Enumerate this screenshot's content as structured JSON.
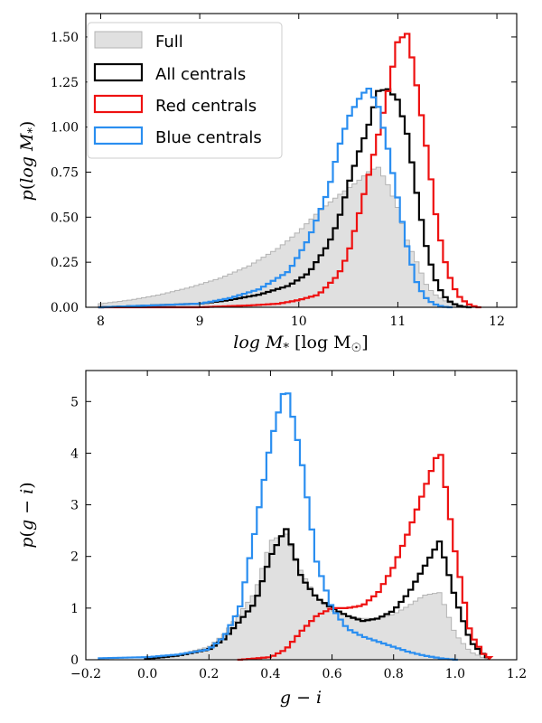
{
  "chart_data": [
    {
      "type": "histogram",
      "panel": "top",
      "xlabel": "log M* [log M☉]",
      "ylabel": "p(log M*)",
      "xlim": [
        7.85,
        12.2
      ],
      "ylim": [
        0,
        1.63
      ],
      "xticks": [
        8,
        9,
        10,
        11,
        12
      ],
      "xtick_labels": [
        "8",
        "9",
        "10",
        "11",
        "12"
      ],
      "yticks": [
        0,
        0.25,
        0.5,
        0.75,
        1.0,
        1.25,
        1.5
      ],
      "ytick_labels": [
        "0.00",
        "0.25",
        "0.50",
        "0.75",
        "1.00",
        "1.25",
        "1.50"
      ],
      "legend_position": "top-left",
      "series": [
        {
          "name": "Full",
          "style": "filled",
          "color": "#e0e0e0",
          "edge": "#b3b3b3",
          "x": [
            8.0,
            8.3,
            8.6,
            8.9,
            9.2,
            9.5,
            9.8,
            10.0,
            10.2,
            10.4,
            10.5,
            10.6,
            10.7,
            10.8,
            10.9,
            11.0,
            11.1,
            11.2,
            11.3,
            11.4,
            11.5,
            11.6,
            11.7,
            11.8
          ],
          "y": [
            0.02,
            0.04,
            0.07,
            0.11,
            0.16,
            0.23,
            0.33,
            0.42,
            0.53,
            0.62,
            0.66,
            0.7,
            0.75,
            0.78,
            0.68,
            0.55,
            0.36,
            0.24,
            0.11,
            0.06,
            0.03,
            0.01,
            0.0,
            0.0
          ]
        },
        {
          "name": "All centrals",
          "style": "step",
          "color": "#000000",
          "x": [
            8.0,
            8.5,
            9.0,
            9.3,
            9.6,
            9.9,
            10.1,
            10.3,
            10.4,
            10.5,
            10.6,
            10.7,
            10.8,
            10.9,
            11.0,
            11.1,
            11.2,
            11.3,
            11.4,
            11.5,
            11.6,
            11.7
          ],
          "y": [
            0.0,
            0.01,
            0.02,
            0.04,
            0.07,
            0.12,
            0.19,
            0.35,
            0.48,
            0.68,
            0.85,
            1.0,
            1.2,
            1.21,
            1.15,
            0.95,
            0.6,
            0.3,
            0.12,
            0.04,
            0.01,
            0.0
          ]
        },
        {
          "name": "Red centrals",
          "style": "step",
          "color": "#ee1111",
          "x": [
            8.0,
            9.0,
            9.5,
            9.8,
            10.0,
            10.2,
            10.4,
            10.5,
            10.6,
            10.7,
            10.8,
            10.9,
            11.0,
            11.1,
            11.2,
            11.3,
            11.4,
            11.5,
            11.6,
            11.7,
            11.8
          ],
          "y": [
            0.0,
            0.0,
            0.01,
            0.02,
            0.04,
            0.07,
            0.18,
            0.3,
            0.5,
            0.72,
            0.95,
            1.2,
            1.48,
            1.52,
            1.2,
            0.85,
            0.45,
            0.2,
            0.07,
            0.02,
            0.0
          ]
        },
        {
          "name": "Blue centrals",
          "style": "step",
          "color": "#2a8ef0",
          "x": [
            8.0,
            8.5,
            9.0,
            9.3,
            9.6,
            9.9,
            10.1,
            10.3,
            10.4,
            10.5,
            10.6,
            10.7,
            10.8,
            10.9,
            11.0,
            11.1,
            11.2,
            11.3,
            11.4,
            11.5
          ],
          "y": [
            0.0,
            0.01,
            0.02,
            0.05,
            0.1,
            0.2,
            0.38,
            0.65,
            0.88,
            1.05,
            1.15,
            1.22,
            1.12,
            0.88,
            0.6,
            0.32,
            0.12,
            0.04,
            0.01,
            0.0
          ]
        }
      ]
    },
    {
      "type": "histogram",
      "panel": "bottom",
      "xlabel": "g − i",
      "ylabel": "p(g − i)",
      "xlim": [
        -0.2,
        1.2
      ],
      "ylim": [
        0,
        5.6
      ],
      "xticks": [
        -0.2,
        0.0,
        0.2,
        0.4,
        0.6,
        0.8,
        1.0,
        1.2
      ],
      "xtick_labels": [
        "−0.2",
        "0.0",
        "0.2",
        "0.4",
        "0.6",
        "0.8",
        "1.0",
        "1.2"
      ],
      "yticks": [
        0,
        1,
        2,
        3,
        4,
        5
      ],
      "ytick_labels": [
        "0",
        "1",
        "2",
        "3",
        "4",
        "5"
      ],
      "series": [
        {
          "name": "Full",
          "style": "filled",
          "color": "#e0e0e0",
          "edge": "#b3b3b3",
          "x": [
            0.0,
            0.1,
            0.2,
            0.25,
            0.3,
            0.35,
            0.4,
            0.45,
            0.5,
            0.55,
            0.6,
            0.65,
            0.7,
            0.75,
            0.8,
            0.85,
            0.9,
            0.95,
            1.0,
            1.05,
            1.1
          ],
          "y": [
            0.02,
            0.1,
            0.25,
            0.5,
            0.9,
            1.3,
            2.3,
            2.45,
            1.7,
            1.2,
            0.95,
            0.85,
            0.8,
            0.8,
            0.88,
            1.05,
            1.25,
            1.3,
            0.5,
            0.15,
            0.02
          ]
        },
        {
          "name": "All centrals",
          "style": "step",
          "color": "#000000",
          "x": [
            0.0,
            0.1,
            0.2,
            0.25,
            0.3,
            0.35,
            0.4,
            0.45,
            0.5,
            0.55,
            0.6,
            0.65,
            0.7,
            0.75,
            0.8,
            0.85,
            0.9,
            0.95,
            1.0,
            1.05,
            1.1
          ],
          "y": [
            0.02,
            0.08,
            0.2,
            0.4,
            0.75,
            1.1,
            2.0,
            2.55,
            1.6,
            1.2,
            1.0,
            0.85,
            0.75,
            0.8,
            0.95,
            1.3,
            1.8,
            2.3,
            1.2,
            0.35,
            0.05
          ]
        },
        {
          "name": "Red centrals",
          "style": "step",
          "color": "#ee1111",
          "x": [
            0.3,
            0.4,
            0.45,
            0.5,
            0.55,
            0.6,
            0.65,
            0.7,
            0.75,
            0.8,
            0.85,
            0.9,
            0.95,
            1.0,
            1.05,
            1.1
          ],
          "y": [
            0.0,
            0.05,
            0.2,
            0.55,
            0.85,
            1.0,
            1.0,
            1.05,
            1.3,
            1.8,
            2.5,
            3.3,
            4.1,
            2.1,
            0.5,
            0.05
          ]
        },
        {
          "name": "Blue centrals",
          "style": "step",
          "color": "#2a8ef0",
          "x": [
            -0.15,
            0.0,
            0.1,
            0.2,
            0.25,
            0.3,
            0.35,
            0.4,
            0.45,
            0.5,
            0.55,
            0.6,
            0.65,
            0.7,
            0.75,
            0.8,
            0.85,
            0.9,
            0.95,
            1.0
          ],
          "y": [
            0.03,
            0.05,
            0.1,
            0.2,
            0.45,
            1.0,
            2.5,
            4.2,
            5.35,
            3.9,
            1.9,
            1.0,
            0.6,
            0.45,
            0.35,
            0.25,
            0.15,
            0.08,
            0.03,
            0.0
          ]
        }
      ]
    }
  ]
}
